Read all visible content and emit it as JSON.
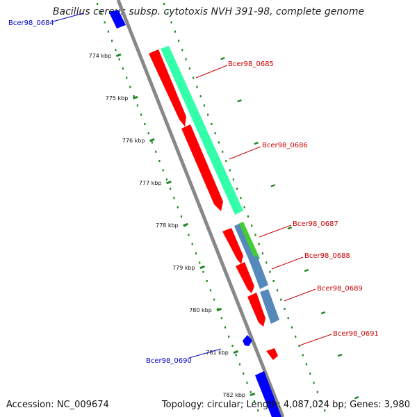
{
  "title": "Bacillus cereus subsp. cytotoxis NVH 391-98, complete genome",
  "footer": {
    "accession": "Accession: NC_009674",
    "summary": "Topology: circular; Length: 4,087,024 bp; Genes: 3,980"
  },
  "ticks": [
    {
      "label": "774 kbp",
      "kbp": 774
    },
    {
      "label": "775 kbp",
      "kbp": 775
    },
    {
      "label": "776 kbp",
      "kbp": 776
    },
    {
      "label": "777 kbp",
      "kbp": 777
    },
    {
      "label": "778 kbp",
      "kbp": 778
    },
    {
      "label": "779 kbp",
      "kbp": 779
    },
    {
      "label": "780 kbp",
      "kbp": 780
    },
    {
      "label": "781 kbp",
      "kbp": 781
    },
    {
      "label": "782 kbp",
      "kbp": 782
    }
  ],
  "genes": [
    {
      "label": "Bcer98_0684",
      "strand": "minus"
    },
    {
      "label": "Bcer98_0685",
      "strand": "plus"
    },
    {
      "label": "Bcer98_0686",
      "strand": "plus"
    },
    {
      "label": "Bcer98_0687",
      "strand": "plus"
    },
    {
      "label": "Bcer98_0688",
      "strand": "plus"
    },
    {
      "label": "Bcer98_0689",
      "strand": "plus"
    },
    {
      "label": "Bcer98_0690",
      "strand": "minus"
    },
    {
      "label": "Bcer98_0691",
      "strand": "plus"
    }
  ],
  "colors": {
    "plus_label": "#cc0000",
    "minus_label": "#0000cc",
    "cds_red": "#ff0000",
    "cds_blue": "#0000ff",
    "feature_mint": "#33ffaa",
    "feature_green": "#44cc33",
    "feature_steel": "#5588bb",
    "backbone": "#888888",
    "ticks": "#228822"
  }
}
